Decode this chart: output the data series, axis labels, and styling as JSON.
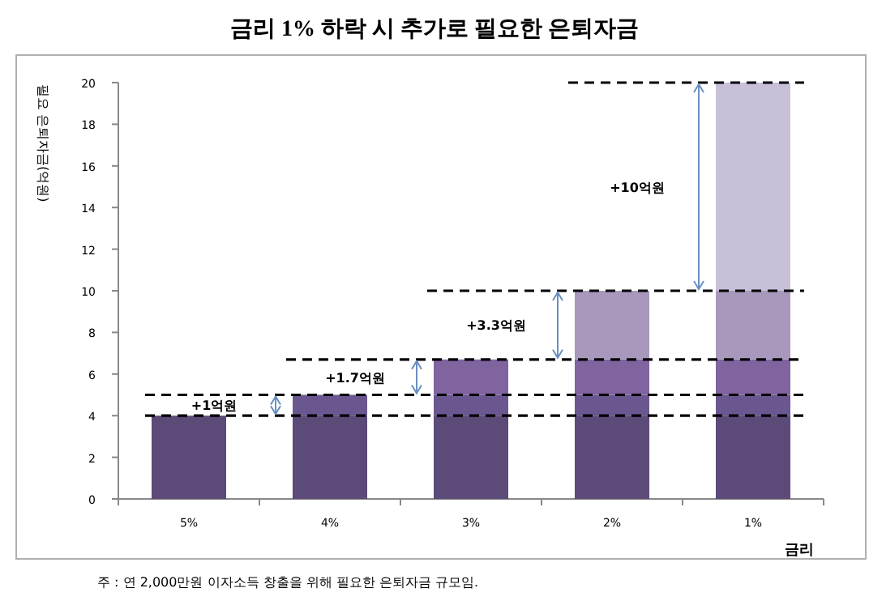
{
  "chart_data": {
    "type": "bar",
    "title": "금리 1% 하락 시 추가로 필요한 은퇴자금",
    "xlabel": "금리",
    "ylabel": "필요 은퇴자금(억원)",
    "categories": [
      "5%",
      "4%",
      "3%",
      "2%",
      "1%"
    ],
    "stacked": true,
    "ylim": [
      0,
      20
    ],
    "yticks": [
      0,
      2,
      4,
      6,
      8,
      10,
      12,
      14,
      16,
      18,
      20
    ],
    "series": [
      {
        "color": "#5c4a78",
        "values": [
          4,
          4,
          4,
          4,
          4
        ]
      },
      {
        "color": "#6b5790",
        "values": [
          null,
          1,
          1,
          1,
          1
        ]
      },
      {
        "color": "#8064a0",
        "values": [
          null,
          null,
          1.7,
          1.7,
          1.7
        ]
      },
      {
        "color": "#a898bc",
        "values": [
          null,
          null,
          null,
          3.3,
          3.3
        ]
      },
      {
        "color": "#c8c0d8",
        "values": [
          null,
          null,
          null,
          null,
          10
        ]
      }
    ],
    "ref_lines": [
      {
        "axis": "y",
        "value": 4,
        "color": "#000000",
        "line_style": "dashed"
      },
      {
        "axis": "y",
        "value": 5,
        "color": "#000000",
        "line_style": "dashed"
      },
      {
        "axis": "y",
        "value": 6.7,
        "color": "#000000",
        "line_style": "dashed"
      },
      {
        "axis": "y",
        "value": 10,
        "color": "#000000",
        "line_style": "dashed"
      },
      {
        "axis": "y",
        "value": 20,
        "color": "#000000",
        "line_style": "dashed"
      }
    ],
    "annotations": [
      "+1억원",
      "+1.7억원",
      "+3.3억원",
      "+10억원",
      "주 : 연 2,000만원 이자소득 창출을 위해 필요한 은퇴자금 규모임."
    ]
  }
}
